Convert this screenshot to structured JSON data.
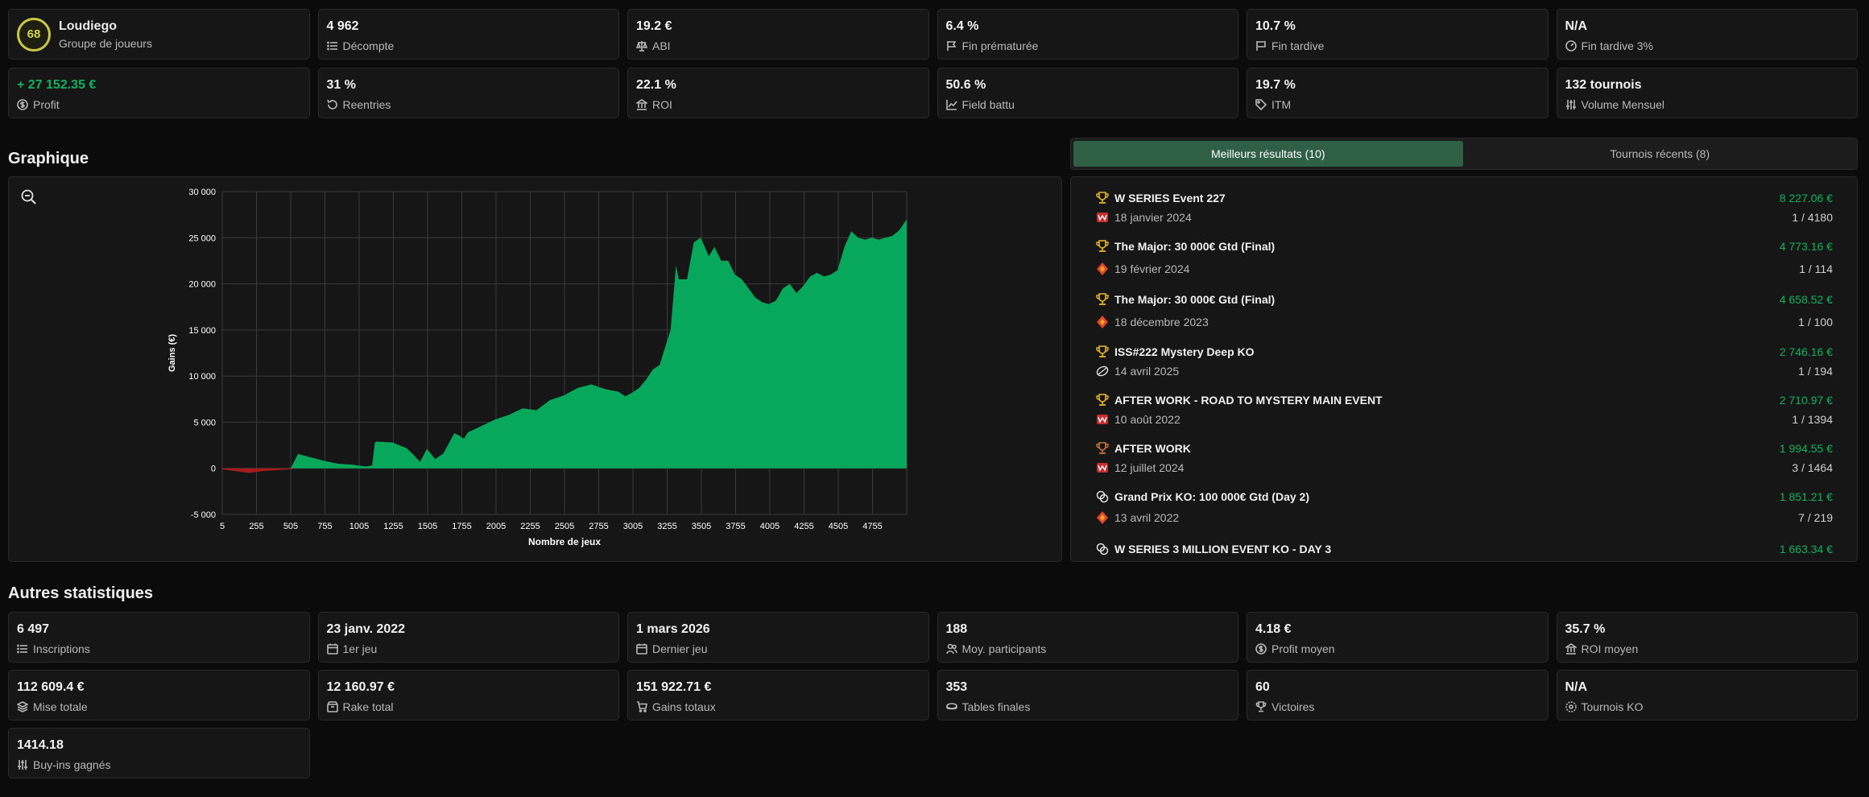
{
  "player": {
    "level": "68",
    "name": "Loudiego",
    "group": "Groupe de joueurs"
  },
  "top_stats": [
    {
      "value": "4 962",
      "label": "Décompte",
      "icon": "list-icon"
    },
    {
      "value": "19.2 €",
      "label": "ABI",
      "icon": "scale-icon"
    },
    {
      "value": "6.4 %",
      "label": "Fin prématurée",
      "icon": "flag-icon"
    },
    {
      "value": "10.7 %",
      "label": "Fin tardive",
      "icon": "flag-icon"
    },
    {
      "value": "N/A",
      "label": "Fin tardive 3%",
      "icon": "gauge-icon"
    },
    {
      "value": "+ 27 152.35 €",
      "label": "Profit",
      "icon": "dollar-circle-icon",
      "color": "#10b35f"
    },
    {
      "value": "31 %",
      "label": "Reentries",
      "icon": "rotate-icon"
    },
    {
      "value": "22.1 %",
      "label": "ROI",
      "icon": "bank-icon"
    },
    {
      "value": "50.6 %",
      "label": "Field battu",
      "icon": "chart-line-icon"
    },
    {
      "value": "19.7 %",
      "label": "ITM",
      "icon": "tag-icon"
    },
    {
      "value": "132 tournois",
      "label": "Volume Mensuel",
      "icon": "sliders-icon"
    }
  ],
  "sections": {
    "graph_title": "Graphique",
    "other_title": "Autres statistiques"
  },
  "tabs": [
    {
      "label": "Meilleurs résultats (10)",
      "active": true
    },
    {
      "label": "Tournois récents (8)",
      "active": false
    }
  ],
  "chart_data": {
    "type": "area",
    "xlabel": "Nombre de jeux",
    "ylabel": "Gains (€)",
    "xlim": [
      5,
      5005
    ],
    "ylim": [
      -5000,
      30000
    ],
    "x_ticks": [
      "5",
      "255",
      "505",
      "755",
      "1005",
      "1255",
      "1505",
      "1755",
      "2005",
      "2255",
      "2505",
      "2755",
      "3005",
      "3255",
      "3505",
      "3755",
      "4005",
      "4255",
      "4505",
      "4755"
    ],
    "y_ticks": [
      "30 000",
      "25 000",
      "20 000",
      "15 000",
      "10 000",
      "5 000",
      "0",
      "-5 000"
    ],
    "grid": true,
    "positive_color": "#07a85c",
    "negative_color": "#a61c1c",
    "x": [
      5,
      100,
      200,
      300,
      400,
      505,
      560,
      570,
      650,
      750,
      850,
      950,
      1050,
      1100,
      1120,
      1130,
      1250,
      1300,
      1350,
      1400,
      1450,
      1500,
      1560,
      1620,
      1700,
      1730,
      1770,
      1800,
      1900,
      2000,
      2100,
      2200,
      2300,
      2400,
      2500,
      2600,
      2700,
      2800,
      2900,
      2950,
      3000,
      3050,
      3100,
      3150,
      3200,
      3280,
      3320,
      3340,
      3400,
      3450,
      3500,
      3560,
      3600,
      3650,
      3700,
      3750,
      3800,
      3850,
      3900,
      3950,
      4000,
      4050,
      4100,
      4150,
      4200,
      4250,
      4300,
      4350,
      4400,
      4450,
      4500,
      4550,
      4600,
      4650,
      4700,
      4750,
      4800,
      4850,
      4900,
      4950,
      5005
    ],
    "y": [
      -100,
      -300,
      -500,
      -300,
      -200,
      -100,
      1600,
      1500,
      1200,
      800,
      500,
      400,
      200,
      300,
      2800,
      2900,
      2800,
      2500,
      2200,
      1500,
      700,
      2100,
      1000,
      1600,
      3800,
      3600,
      3200,
      3900,
      4600,
      5300,
      5800,
      6500,
      6300,
      7400,
      7900,
      8700,
      9100,
      8600,
      8300,
      7800,
      8200,
      8700,
      9600,
      10700,
      11200,
      15000,
      22000,
      20500,
      20500,
      24500,
      25000,
      23000,
      24000,
      22500,
      22500,
      21000,
      20500,
      19500,
      18500,
      18000,
      17800,
      18200,
      19500,
      20000,
      19000,
      19800,
      20800,
      21200,
      20800,
      21000,
      21500,
      24000,
      25700,
      25000,
      24800,
      25000,
      24800,
      25000,
      25200,
      25800,
      27000
    ]
  },
  "results": [
    {
      "title": "W SERIES Event 227",
      "gain": "8 227.06 €",
      "date": "18 janvier 2024",
      "rank": "1 / 4180",
      "title_icon": "trophy-icon",
      "site_icon": "winamax-icon"
    },
    {
      "title": "The Major: 30 000€ Gtd (Final)",
      "gain": "4 773.16 €",
      "date": "19 février 2024",
      "rank": "1 / 114",
      "title_icon": "trophy-icon",
      "site_icon": "diamond-icon"
    },
    {
      "title": "The Major: 30 000€ Gtd (Final)",
      "gain": "4 658.52 €",
      "date": "18 décembre 2023",
      "rank": "1 / 100",
      "title_icon": "trophy-icon",
      "site_icon": "diamond-icon"
    },
    {
      "title": "ISS#222 Mystery Deep KO",
      "gain": "2 746.16 €",
      "date": "14 avril 2025",
      "rank": "1 / 194",
      "title_icon": "trophy-icon",
      "site_icon": "ball-icon"
    },
    {
      "title": "AFTER WORK - ROAD TO MYSTERY MAIN EVENT",
      "gain": "2 710.97 €",
      "date": "10 août 2022",
      "rank": "1 / 1394",
      "title_icon": "trophy-icon",
      "site_icon": "winamax-icon"
    },
    {
      "title": "AFTER WORK",
      "gain": "1 994.55 €",
      "date": "12 juillet 2024",
      "rank": "3 / 1464",
      "title_icon": "trophy-bronze-icon",
      "site_icon": "winamax-icon"
    },
    {
      "title": "Grand Prix KO: 100 000€ Gtd (Day 2)",
      "gain": "1 851.21 €",
      "date": "13 avril 2022",
      "rank": "7 / 219",
      "title_icon": "chips-icon",
      "site_icon": "diamond-icon"
    },
    {
      "title": "W SERIES 3 MILLION EVENT KO - DAY 3",
      "gain": "1 663.34 €",
      "date": "",
      "rank": "",
      "title_icon": "chips-icon",
      "site_icon": ""
    }
  ],
  "other_stats": [
    {
      "value": "6 497",
      "label": "Inscriptions",
      "icon": "list-icon"
    },
    {
      "value": "23 janv. 2022",
      "label": "1er jeu",
      "icon": "calendar-icon"
    },
    {
      "value": "1 mars 2026",
      "label": "Dernier jeu",
      "icon": "calendar-icon"
    },
    {
      "value": "188",
      "label": "Moy. participants",
      "icon": "users-icon"
    },
    {
      "value": "4.18 €",
      "label": "Profit moyen",
      "icon": "dollar-circle-icon"
    },
    {
      "value": "35.7 %",
      "label": "ROI moyen",
      "icon": "bank-icon"
    },
    {
      "value": "112 609.4 €",
      "label": "Mise totale",
      "icon": "layers-icon"
    },
    {
      "value": "12 160.97 €",
      "label": "Rake total",
      "icon": "box-icon"
    },
    {
      "value": "151 922.71 €",
      "label": "Gains totaux",
      "icon": "cart-icon"
    },
    {
      "value": "353",
      "label": "Tables finales",
      "icon": "table-icon"
    },
    {
      "value": "60",
      "label": "Victoires",
      "icon": "trophy-icon"
    },
    {
      "value": "N/A",
      "label": "Tournois KO",
      "icon": "target-icon"
    },
    {
      "value": "1414.18",
      "label": "Buy-ins gagnés",
      "icon": "sliders-icon"
    }
  ]
}
